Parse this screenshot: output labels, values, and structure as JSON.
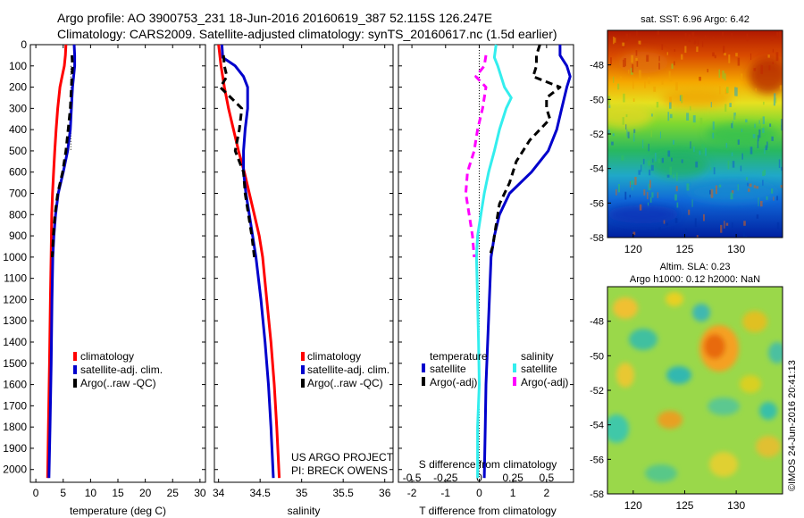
{
  "header": {
    "line1": "Argo profile: AO 3900753_231 18-Jun-2016 20160619_387 52.115S 126.247E",
    "line2": "Climatology: CARS2009. Satellite-adjusted climatology: synTS_20160617.nc (1.5d earlier)"
  },
  "colors": {
    "climatology": "#ff0000",
    "satellite": "#0000cc",
    "argo": "#000000",
    "temp_diff_satellite": "#0000cc",
    "sal_diff_satellite": "#33eeee",
    "sal_diff_argo": "#ff00ff"
  },
  "chart_data": [
    {
      "type": "line",
      "panel": "temperature",
      "xlabel": "temperature (deg C)",
      "ylabel": "",
      "xlim": [
        -1,
        31
      ],
      "ylim": [
        2060,
        0
      ],
      "xticks": [
        0,
        5,
        10,
        15,
        20,
        25,
        30
      ],
      "yticks": [
        0,
        100,
        200,
        300,
        400,
        500,
        600,
        700,
        800,
        900,
        1000,
        1100,
        1200,
        1300,
        1400,
        1500,
        1600,
        1700,
        1800,
        1900,
        2000
      ],
      "legend": [
        "climatology",
        "satellite-adj. clim.",
        "Argo(..raw -QC)"
      ],
      "series": [
        {
          "name": "climatology",
          "style": "solid",
          "points": [
            [
              5.5,
              0
            ],
            [
              5.4,
              50
            ],
            [
              5.2,
              100
            ],
            [
              4.8,
              150
            ],
            [
              4.4,
              200
            ],
            [
              4.0,
              300
            ],
            [
              3.7,
              400
            ],
            [
              3.45,
              500
            ],
            [
              3.25,
              600
            ],
            [
              3.05,
              700
            ],
            [
              2.9,
              800
            ],
            [
              2.78,
              1000
            ],
            [
              2.65,
              1200
            ],
            [
              2.5,
              1500
            ],
            [
              2.3,
              1800
            ],
            [
              2.15,
              2040
            ]
          ]
        },
        {
          "name": "satellite-adj. clim.",
          "style": "solid",
          "points": [
            [
              7.0,
              0
            ],
            [
              7.1,
              50
            ],
            [
              7.1,
              100
            ],
            [
              6.9,
              150
            ],
            [
              6.7,
              200
            ],
            [
              6.5,
              300
            ],
            [
              6.3,
              400
            ],
            [
              5.8,
              500
            ],
            [
              5.0,
              600
            ],
            [
              4.1,
              700
            ],
            [
              3.6,
              800
            ],
            [
              3.3,
              900
            ],
            [
              3.1,
              1000
            ],
            [
              2.95,
              1200
            ],
            [
              2.8,
              1500
            ],
            [
              2.6,
              1800
            ],
            [
              2.4,
              2040
            ]
          ]
        },
        {
          "name": "Argo(..raw -QC)",
          "style": "dashed",
          "points": [
            [
              6.6,
              50
            ],
            [
              6.7,
              100
            ],
            [
              6.6,
              150
            ],
            [
              6.5,
              200
            ],
            [
              6.3,
              300
            ],
            [
              5.9,
              400
            ],
            [
              5.5,
              500
            ],
            [
              4.9,
              600
            ],
            [
              4.0,
              700
            ],
            [
              3.5,
              800
            ],
            [
              3.2,
              900
            ],
            [
              3.0,
              1000
            ]
          ]
        }
      ]
    },
    {
      "type": "line",
      "panel": "salinity",
      "xlabel": "salinity",
      "xlim": [
        33.95,
        36.1
      ],
      "ylim": [
        2060,
        0
      ],
      "xticks": [
        34,
        34.5,
        35,
        35.5,
        36
      ],
      "legend": [
        "climatology",
        "satellite-adj. clim.",
        "Argo(..raw -QC)"
      ],
      "series": [
        {
          "name": "climatology",
          "style": "solid",
          "points": [
            [
              34.0,
              0
            ],
            [
              34.03,
              100
            ],
            [
              34.07,
              200
            ],
            [
              34.12,
              300
            ],
            [
              34.18,
              400
            ],
            [
              34.24,
              500
            ],
            [
              34.31,
              600
            ],
            [
              34.37,
              700
            ],
            [
              34.43,
              800
            ],
            [
              34.49,
              900
            ],
            [
              34.53,
              1000
            ],
            [
              34.58,
              1200
            ],
            [
              34.63,
              1400
            ],
            [
              34.67,
              1600
            ],
            [
              34.7,
              1800
            ],
            [
              34.73,
              2040
            ]
          ]
        },
        {
          "name": "satellite-adj. clim.",
          "style": "solid",
          "points": [
            [
              34.04,
              0
            ],
            [
              34.05,
              60
            ],
            [
              34.2,
              100
            ],
            [
              34.3,
              150
            ],
            [
              34.35,
              200
            ],
            [
              34.35,
              300
            ],
            [
              34.32,
              400
            ],
            [
              34.3,
              500
            ],
            [
              34.3,
              600
            ],
            [
              34.33,
              700
            ],
            [
              34.37,
              800
            ],
            [
              34.41,
              900
            ],
            [
              34.45,
              1000
            ],
            [
              34.51,
              1200
            ],
            [
              34.56,
              1400
            ],
            [
              34.6,
              1600
            ],
            [
              34.63,
              1800
            ],
            [
              34.66,
              2040
            ]
          ]
        },
        {
          "name": "Argo(..raw -QC)",
          "style": "dashed",
          "points": [
            [
              34.06,
              50
            ],
            [
              34.07,
              100
            ],
            [
              34.1,
              150
            ],
            [
              34.02,
              200
            ],
            [
              34.15,
              250
            ],
            [
              34.28,
              300
            ],
            [
              34.25,
              400
            ],
            [
              34.2,
              500
            ],
            [
              34.25,
              550
            ],
            [
              34.3,
              600
            ],
            [
              34.32,
              700
            ],
            [
              34.36,
              800
            ],
            [
              34.4,
              900
            ],
            [
              34.43,
              1000
            ]
          ]
        }
      ]
    },
    {
      "type": "line",
      "panel": "difference",
      "xlabel": "T difference from climatology",
      "xlabel_top": "S difference from climatology",
      "xlim": [
        -2.4,
        2.8
      ],
      "ylim": [
        2060,
        0
      ],
      "xticks": [
        -2,
        -1,
        0,
        1,
        2
      ],
      "xtick_labels_top": [
        "-0.5",
        "-0.25",
        "0",
        "0.25",
        "0.5"
      ],
      "xtick_top_positions": [
        -2,
        -1,
        0,
        1,
        2
      ],
      "legend": {
        "temperature": {
          "title": "temperature",
          "items": [
            "satellite",
            "Argo(-adj)"
          ]
        },
        "salinity": {
          "title": "salinity",
          "items": [
            "satellite",
            "Argo(-adj)"
          ]
        }
      },
      "series": [
        {
          "name": "temperature satellite",
          "style": "solid",
          "points": [
            [
              2.4,
              0
            ],
            [
              2.4,
              50
            ],
            [
              2.6,
              100
            ],
            [
              2.7,
              150
            ],
            [
              2.6,
              200
            ],
            [
              2.45,
              300
            ],
            [
              2.3,
              400
            ],
            [
              2.05,
              500
            ],
            [
              1.55,
              600
            ],
            [
              0.9,
              700
            ],
            [
              0.6,
              800
            ],
            [
              0.45,
              900
            ],
            [
              0.35,
              1000
            ],
            [
              0.3,
              1200
            ],
            [
              0.25,
              1400
            ],
            [
              0.2,
              1600
            ],
            [
              0.18,
              1800
            ],
            [
              0.15,
              2040
            ]
          ]
        },
        {
          "name": "temperature Argo(-adj)",
          "style": "dashed",
          "points": [
            [
              1.8,
              0
            ],
            [
              1.7,
              50
            ],
            [
              1.7,
              100
            ],
            [
              1.6,
              150
            ],
            [
              2.4,
              200
            ],
            [
              2.0,
              250
            ],
            [
              2.0,
              300
            ],
            [
              2.1,
              350
            ],
            [
              1.5,
              450
            ],
            [
              1.1,
              550
            ],
            [
              0.9,
              650
            ],
            [
              0.6,
              750
            ],
            [
              0.5,
              850
            ],
            [
              0.4,
              950
            ],
            [
              0.3,
              1000
            ]
          ]
        },
        {
          "name": "salinity satellite",
          "style": "solid",
          "points": [
            [
              0.5,
              0
            ],
            [
              0.45,
              60
            ],
            [
              0.55,
              100
            ],
            [
              0.75,
              200
            ],
            [
              0.95,
              250
            ],
            [
              0.8,
              300
            ],
            [
              0.6,
              400
            ],
            [
              0.45,
              500
            ],
            [
              0.28,
              600
            ],
            [
              0.15,
              700
            ],
            [
              0.05,
              800
            ],
            [
              -0.05,
              900
            ],
            [
              -0.08,
              1000
            ],
            [
              -0.05,
              1200
            ],
            [
              -0.02,
              1400
            ],
            [
              0.0,
              1600
            ],
            [
              -0.05,
              1800
            ],
            [
              -0.05,
              2000
            ],
            [
              -0.05,
              2040
            ]
          ]
        },
        {
          "name": "salinity Argo(-adj)",
          "style": "dashed",
          "points": [
            [
              0.2,
              50
            ],
            [
              0.15,
              100
            ],
            [
              -0.1,
              150
            ],
            [
              0.2,
              200
            ],
            [
              0.1,
              300
            ],
            [
              -0.05,
              400
            ],
            [
              -0.15,
              500
            ],
            [
              -0.35,
              600
            ],
            [
              -0.4,
              700
            ],
            [
              -0.3,
              800
            ],
            [
              -0.2,
              900
            ],
            [
              -0.15,
              1000
            ]
          ]
        }
      ]
    },
    {
      "type": "heatmap",
      "panel": "sst-map",
      "title": "sat. SST: 6.96 Argo: 6.42",
      "xlim": [
        117.5,
        134.5
      ],
      "ylim": [
        -58,
        -46
      ],
      "xticks": [
        120,
        125,
        130
      ],
      "yticks": [
        -48,
        -50,
        -52,
        -54,
        -56,
        -58
      ]
    },
    {
      "type": "heatmap",
      "panel": "sla-map",
      "title": "Altim. SLA: 0.23",
      "subtitle": "Argo h1000: 0.12 h2000: NaN",
      "xlim": [
        117.5,
        134.5
      ],
      "ylim": [
        -58,
        -46
      ],
      "xticks": [
        120,
        125,
        130
      ],
      "yticks": [
        -48,
        -50,
        -52,
        -54,
        -56,
        -58
      ]
    }
  ],
  "labels": {
    "temperature_xlabel": "temperature (deg C)",
    "salinity_xlabel": "salinity",
    "diff_xlabel": "T difference from climatology",
    "diff_xlabel_top": "S difference from climatology",
    "legend_clim": "climatology",
    "legend_sat": "satellite-adj. clim.",
    "legend_argo": "Argo(..raw -QC)",
    "legend_temp_title": "temperature",
    "legend_sal_title": "salinity",
    "legend_satellite": "satellite",
    "legend_argo_adj": "Argo(-adj)",
    "project_line1": "US ARGO PROJECT",
    "project_line2": "PI: BRECK OWENS",
    "sst_title": "sat. SST: 6.96 Argo: 6.42",
    "sla_title": "Altim. SLA: 0.23",
    "sla_subtitle": "Argo h1000: 0.12 h2000: NaN",
    "copyright": "©IMOS 24-Jun-2016 20:41:13"
  }
}
